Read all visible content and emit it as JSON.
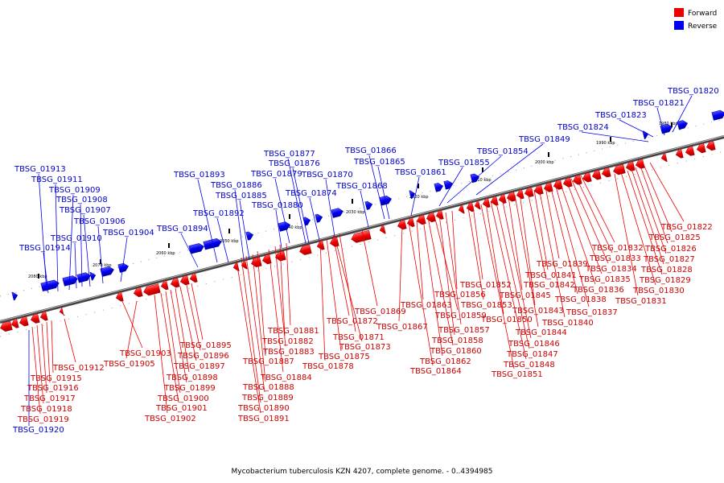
{
  "caption": "Mycobacterium tuberculosis KZN 4207, complete genome. - 0..4394985",
  "legend": [
    {
      "label": "Forward",
      "color": "#ee0000"
    },
    {
      "label": "Reverse",
      "color": "#0000ee"
    }
  ],
  "axis": {
    "ticks": [
      "2080 kbp",
      "2070 kbp",
      "2060 kbp",
      "2050 kbp",
      "2040 kbp",
      "2030 kbp",
      "2020 kbp",
      "2010 kbp",
      "2000 kbp",
      "1990 kbp",
      "1980 kbp"
    ]
  },
  "reverse_genes": [
    {
      "label": "TBSG_01820"
    },
    {
      "label": "TBSG_01821"
    },
    {
      "label": "TBSG_01823"
    },
    {
      "label": "TBSG_01824"
    },
    {
      "label": "TBSG_01849"
    },
    {
      "label": "TBSG_01854"
    },
    {
      "label": "TBSG_01855"
    },
    {
      "label": "TBSG_01861"
    },
    {
      "label": "TBSG_01866"
    },
    {
      "label": "TBSG_01865"
    },
    {
      "label": "TBSG_01868"
    },
    {
      "label": "TBSG_01877"
    },
    {
      "label": "TBSG_01876"
    },
    {
      "label": "TBSG_01879"
    },
    {
      "label": "TBSG_01870"
    },
    {
      "label": "TBSG_01874"
    },
    {
      "label": "TBSG_01880"
    },
    {
      "label": "TBSG_01893"
    },
    {
      "label": "TBSG_01886"
    },
    {
      "label": "TBSG_01885"
    },
    {
      "label": "TBSG_01892"
    },
    {
      "label": "TBSG_01894"
    },
    {
      "label": "TBSG_01913"
    },
    {
      "label": "TBSG_01911"
    },
    {
      "label": "TBSG_01909"
    },
    {
      "label": "TBSG_01908"
    },
    {
      "label": "TBSG_01907"
    },
    {
      "label": "TBSG_01906"
    },
    {
      "label": "TBSG_01904"
    },
    {
      "label": "TBSG_01910"
    },
    {
      "label": "TBSG_01914"
    },
    {
      "label": "TBSG_01920"
    }
  ],
  "forward_genes": [
    {
      "label": "TBSG_01822"
    },
    {
      "label": "TBSG_01825"
    },
    {
      "label": "TBSG_01826"
    },
    {
      "label": "TBSG_01827"
    },
    {
      "label": "TBSG_01828"
    },
    {
      "label": "TBSG_01829"
    },
    {
      "label": "TBSG_01830"
    },
    {
      "label": "TBSG_01831"
    },
    {
      "label": "TBSG_01832"
    },
    {
      "label": "TBSG_01833"
    },
    {
      "label": "TBSG_01834"
    },
    {
      "label": "TBSG_01835"
    },
    {
      "label": "TBSG_01836"
    },
    {
      "label": "TBSG_01837"
    },
    {
      "label": "TBSG_01838"
    },
    {
      "label": "TBSG_01839"
    },
    {
      "label": "TBSG_01840"
    },
    {
      "label": "TBSG_01841"
    },
    {
      "label": "TBSG_01842"
    },
    {
      "label": "TBSG_01843"
    },
    {
      "label": "TBSG_01844"
    },
    {
      "label": "TBSG_01845"
    },
    {
      "label": "TBSG_01846"
    },
    {
      "label": "TBSG_01847"
    },
    {
      "label": "TBSG_01848"
    },
    {
      "label": "TBSG_01850"
    },
    {
      "label": "TBSG_01851"
    },
    {
      "label": "TBSG_01852"
    },
    {
      "label": "TBSG_01853"
    },
    {
      "label": "TBSG_01856"
    },
    {
      "label": "TBSG_01857"
    },
    {
      "label": "TBSG_01858"
    },
    {
      "label": "TBSG_01859"
    },
    {
      "label": "TBSG_01860"
    },
    {
      "label": "TBSG_01862"
    },
    {
      "label": "TBSG_01863"
    },
    {
      "label": "TBSG_01864"
    },
    {
      "label": "TBSG_01867"
    },
    {
      "label": "TBSG_01869"
    },
    {
      "label": "TBSG_01871"
    },
    {
      "label": "TBSG_01872"
    },
    {
      "label": "TBSG_01873"
    },
    {
      "label": "TBSG_01875"
    },
    {
      "label": "TBSG_01878"
    },
    {
      "label": "TBSG_01881"
    },
    {
      "label": "TBSG_01882"
    },
    {
      "label": "TBSG_01883"
    },
    {
      "label": "TBSG_01884"
    },
    {
      "label": "TBSG_01887"
    },
    {
      "label": "TBSG_01888"
    },
    {
      "label": "TBSG_01889"
    },
    {
      "label": "TBSG_01890"
    },
    {
      "label": "TBSG_01891"
    },
    {
      "label": "TBSG_01895"
    },
    {
      "label": "TBSG_01896"
    },
    {
      "label": "TBSG_01897"
    },
    {
      "label": "TBSG_01898"
    },
    {
      "label": "TBSG_01899"
    },
    {
      "label": "TBSG_01900"
    },
    {
      "label": "TBSG_01901"
    },
    {
      "label": "TBSG_01902"
    },
    {
      "label": "TBSG_01903"
    },
    {
      "label": "TBSG_01905"
    },
    {
      "label": "TBSG_01912"
    },
    {
      "label": "TBSG_01915"
    },
    {
      "label": "TBSG_01916"
    },
    {
      "label": "TBSG_01917"
    },
    {
      "label": "TBSG_01918"
    },
    {
      "label": "TBSG_01919"
    }
  ]
}
